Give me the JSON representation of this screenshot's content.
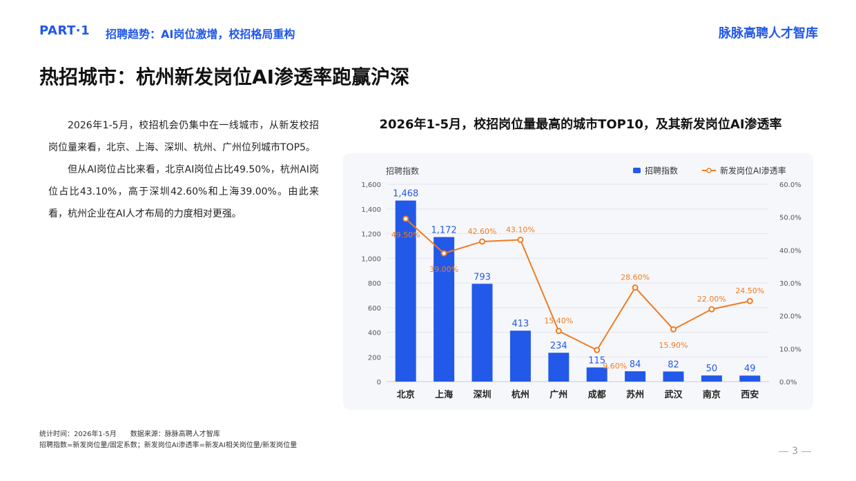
{
  "header": {
    "part": "PART·1",
    "subtitle": "招聘趋势：AI岗位激增，校招格局重构",
    "brand": "脉脉高聘人才智库"
  },
  "page_title": "热招城市：杭州新发岗位AI渗透率跑赢沪深",
  "body": {
    "para1": "2026年1-5月，校招机会仍集中在一线城市，从新发校招岗位量来看，北京、上海、深圳、杭州、广州位列城市TOP5。",
    "para2": "但从AI岗位占比来看，北京AI岗位占比49.50%，杭州AI岗位占比43.10%，高于深圳42.60%和上海39.00%。由此来看，杭州企业在AI人才布局的力度相对更强。"
  },
  "chart_title": "2026年1-5月，校招岗位量最高的城市TOP10，及其新发岗位AI渗透率",
  "chart_data": {
    "type": "bar",
    "categories": [
      "北京",
      "上海",
      "深圳",
      "杭州",
      "广州",
      "成都",
      "苏州",
      "武汉",
      "南京",
      "西安"
    ],
    "series": [
      {
        "name": "招聘指数",
        "type": "bar",
        "axis": "left",
        "values": [
          1468,
          1172,
          793,
          413,
          234,
          115,
          84,
          82,
          50,
          49
        ],
        "color": "#2359e8"
      },
      {
        "name": "新发岗位AI渗透率",
        "type": "line",
        "axis": "right",
        "values": [
          49.5,
          39.0,
          42.6,
          43.1,
          15.4,
          9.6,
          28.6,
          15.9,
          22.0,
          24.5
        ],
        "color": "#f07b21"
      }
    ],
    "y_left": {
      "label": "招聘指数",
      "min": 0,
      "max": 1600,
      "ticks": [
        "0",
        "200",
        "400",
        "600",
        "800",
        "1,000",
        "1,200",
        "1,400",
        "1,600"
      ]
    },
    "y_right": {
      "min": 0,
      "max": 60,
      "ticks": [
        "0.0%",
        "10.0%",
        "20.0%",
        "30.0%",
        "40.0%",
        "50.0%",
        "60.0%"
      ]
    },
    "bar_labels": [
      "1,468",
      "1,172",
      "793",
      "413",
      "234",
      "115",
      "84",
      "82",
      "50",
      "49"
    ],
    "line_labels": [
      "49.50%",
      "39.00%",
      "42.60%",
      "43.10%",
      "15.40%",
      "9.60%",
      "28.60%",
      "15.90%",
      "22.00%",
      "24.50%"
    ],
    "legend_position": "top-right",
    "grid": true
  },
  "footnotes": {
    "line1": "统计时间：2026年1-5月　　数据来源：脉脉高聘人才智库",
    "line2": "招聘指数=新发岗位量/固定系数；新发岗位AI渗透率=新发AI相关岗位量/新发岗位量"
  },
  "page_number": "3"
}
